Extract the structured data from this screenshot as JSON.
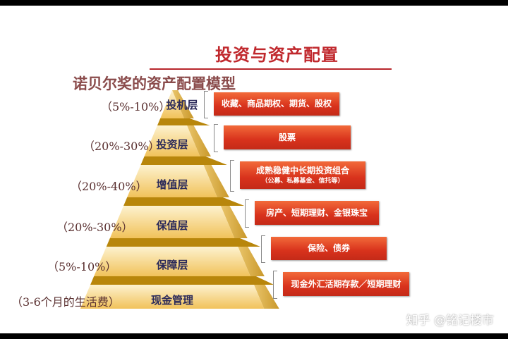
{
  "title": "投资与资产配置",
  "subtitle": "诺贝尔奖的资产配置模型",
  "layers": [
    {
      "name": "投机层",
      "percent": "（5%-10%）",
      "items": "收藏、商品期权、期货、股权"
    },
    {
      "name": "投资层",
      "percent": "（20%-30%）",
      "items": "股票"
    },
    {
      "name": "增值层",
      "percent": "（20%-40%）",
      "items": "成熟稳健中长期投资组合",
      "items_note": "（公募、私募基金、信托等）"
    },
    {
      "name": "保值层",
      "percent": "（20%-30%）",
      "items": "房产、短期理财、金银珠宝"
    },
    {
      "name": "保障层",
      "percent": "（5%-10%）",
      "items": "保险、债券"
    },
    {
      "name": "现金管理",
      "percent": "（3-6个月的生活费）",
      "items": "现金外汇活期存款／短期理财"
    }
  ],
  "watermark": "知乎 @铭记楼市",
  "colors": {
    "title": "#c0282d",
    "box": "#d8321c",
    "pyramid": "#f3c65e"
  }
}
